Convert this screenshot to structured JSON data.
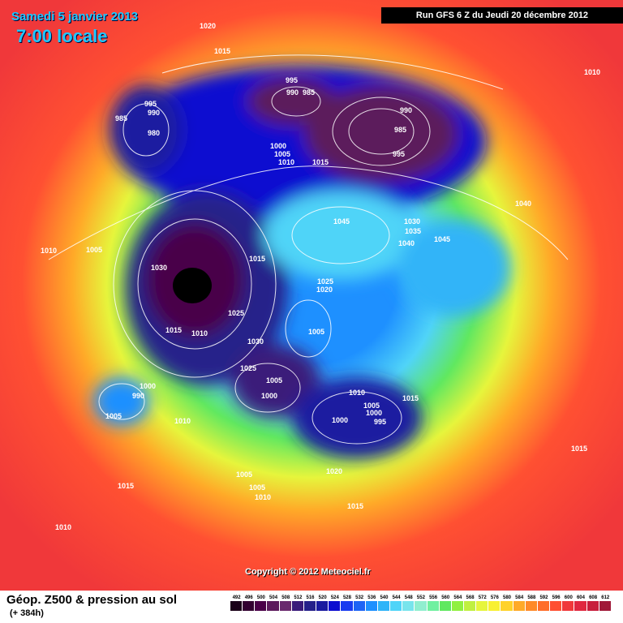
{
  "header": {
    "date": "Samedi 5 janvier 2013",
    "time": "7:00 locale",
    "run": "Run GFS 6 Z du Jeudi 20 décembre 2012"
  },
  "copyright": "Copyright © 2012 Meteociel.fr",
  "footer": {
    "title": "Géop. Z500 & pression au sol",
    "subtitle": "(+ 384h)"
  },
  "legend": {
    "values": [
      "492",
      "496",
      "500",
      "504",
      "508",
      "512",
      "516",
      "520",
      "524",
      "528",
      "532",
      "536",
      "540",
      "544",
      "548",
      "552",
      "556",
      "560",
      "564",
      "568",
      "572",
      "576",
      "580",
      "584",
      "588",
      "592",
      "596",
      "600",
      "604",
      "608",
      "612"
    ],
    "colors": [
      "#1a0018",
      "#320030",
      "#4a0048",
      "#5c1a5c",
      "#6a2a6e",
      "#3a1a7a",
      "#25208a",
      "#1a1aa0",
      "#0d0dd0",
      "#1a3cf0",
      "#1e64f5",
      "#1e90ff",
      "#30b4f8",
      "#50d4f8",
      "#78e4ec",
      "#90eecf",
      "#70f0a0",
      "#60e860",
      "#90f040",
      "#c0f040",
      "#e6f53c",
      "#f8f032",
      "#ffd22a",
      "#ffaa28",
      "#ff8a28",
      "#ff6e2a",
      "#ff5032",
      "#f0383a",
      "#e02840",
      "#c81e3c",
      "#a01838"
    ]
  },
  "pressure_labels": [
    "1020",
    "1015",
    "995",
    "990",
    "985",
    "995",
    "990",
    "985",
    "990",
    "985",
    "980",
    "1000",
    "1005",
    "1010",
    "1015",
    "995",
    "1045",
    "1030",
    "1035",
    "1040",
    "1045",
    "1040",
    "1010",
    "1010",
    "1005",
    "1030",
    "1015",
    "1025",
    "1020",
    "1025",
    "1015",
    "1010",
    "1030",
    "1005",
    "1025",
    "1005",
    "1000",
    "1010",
    "1005",
    "1000",
    "995",
    "1000",
    "1015",
    "1000",
    "990",
    "1005",
    "1010",
    "1020",
    "1005",
    "1015",
    "1005",
    "1010",
    "1015",
    "1015",
    "1010"
  ]
}
